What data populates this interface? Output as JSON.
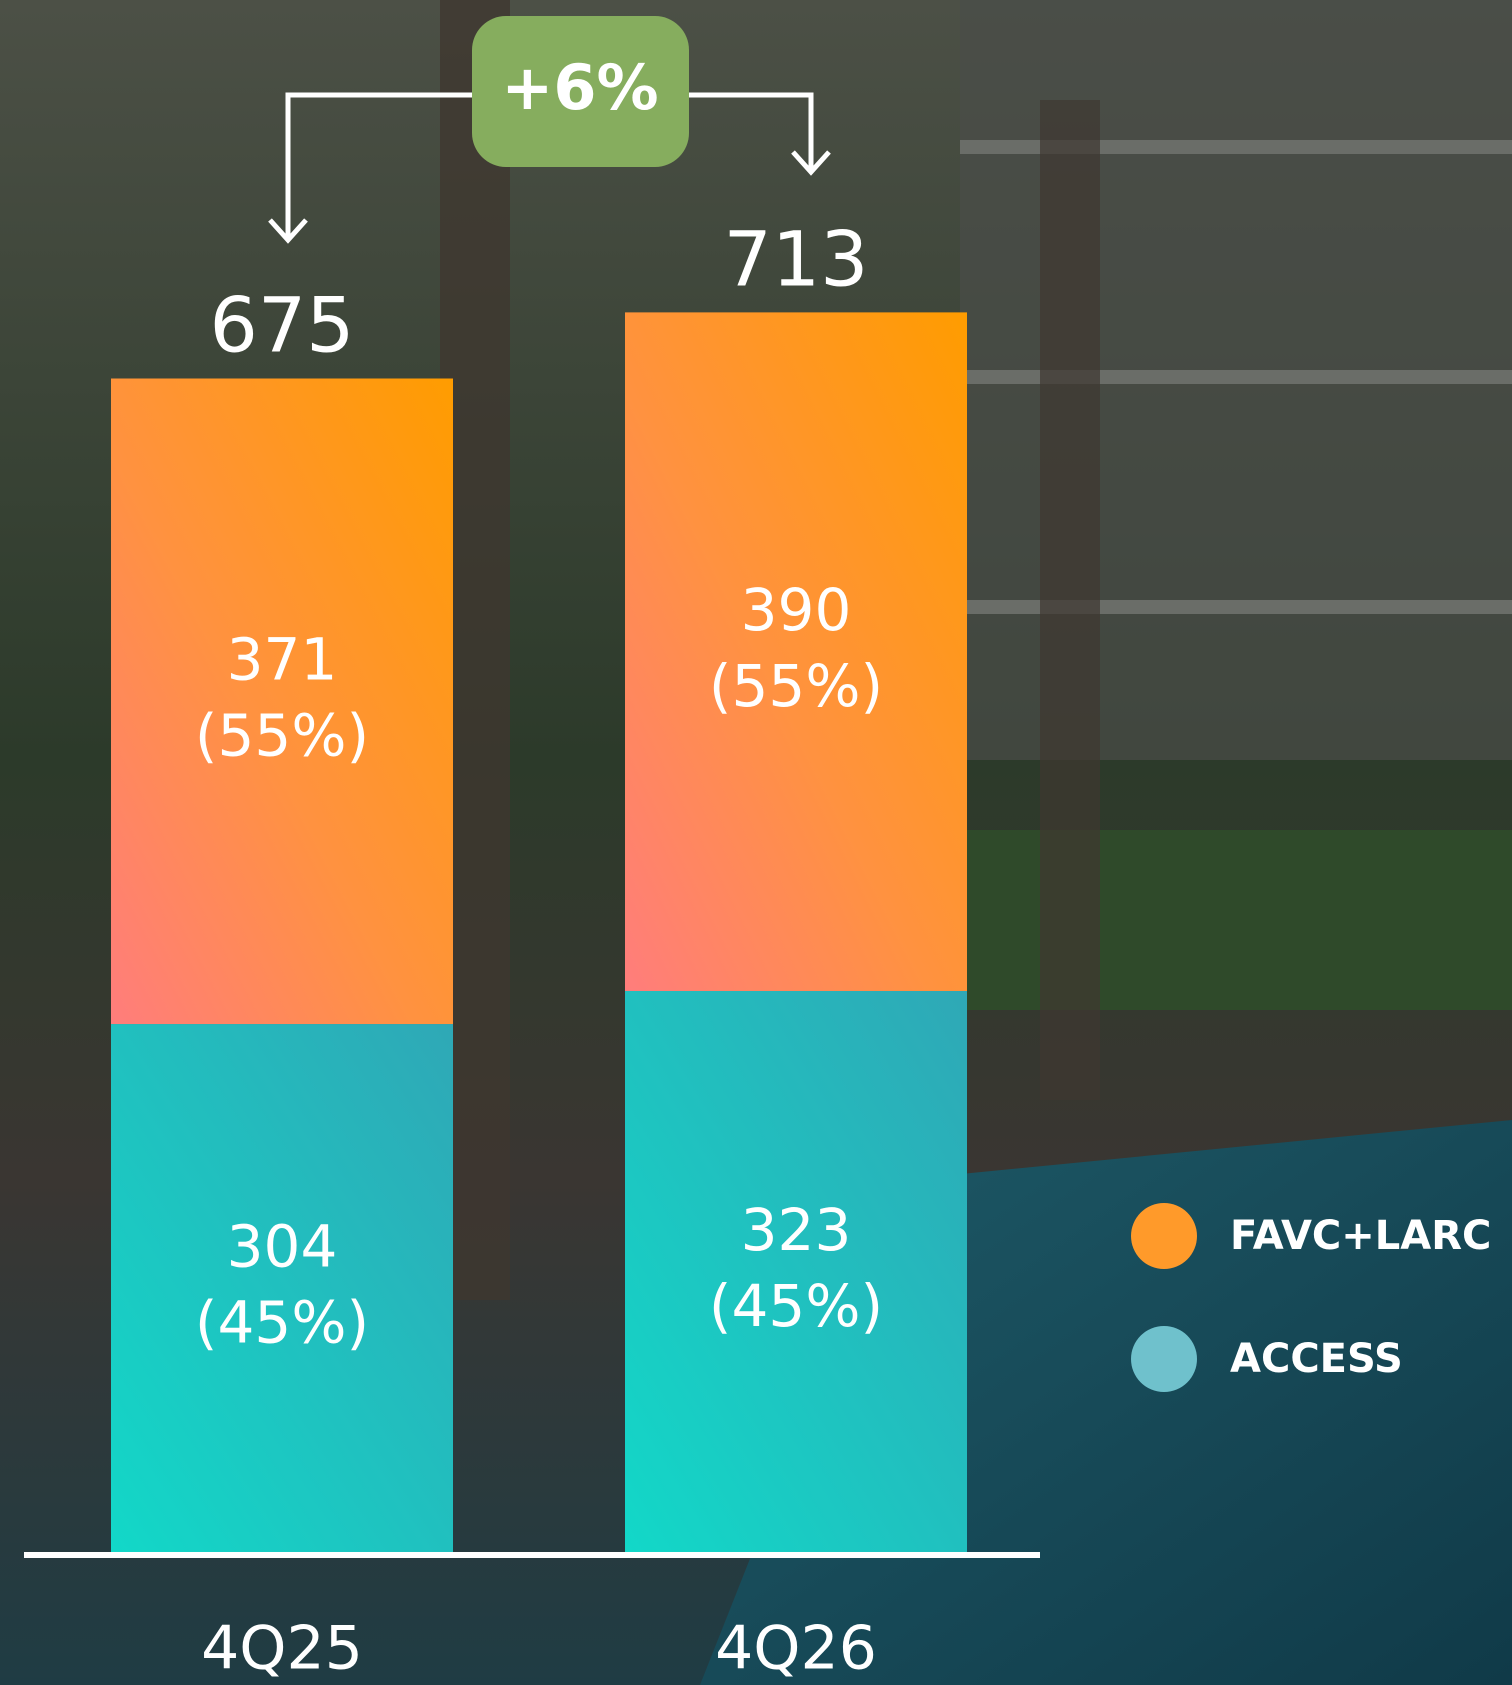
{
  "chart_data": {
    "type": "stacked-bar",
    "categories": [
      "4Q25",
      "4Q26"
    ],
    "series": [
      {
        "name": "ACCESS",
        "color": "#6fc1cc",
        "values": [
          304,
          323
        ],
        "shares": [
          {
            "value": 45,
            "label": "(45%)"
          },
          {
            "value": 45,
            "label": "(45%)"
          }
        ]
      },
      {
        "name": "FAVC+LARC",
        "color": "#ff9a2a",
        "values": [
          371,
          390
        ],
        "shares": [
          {
            "value": 55,
            "label": "(55%)"
          },
          {
            "value": 55,
            "label": "(55%)"
          }
        ]
      }
    ],
    "totals": [
      675,
      713
    ],
    "annotation": {
      "value": 6,
      "label": "+6%"
    },
    "ylim": [
      0,
      750
    ]
  }
}
